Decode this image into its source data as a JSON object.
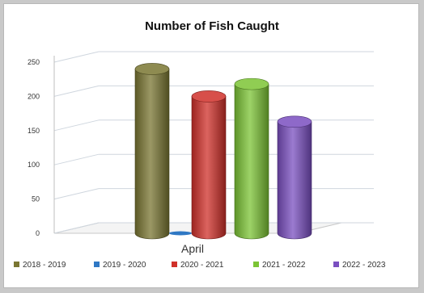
{
  "chart_data": {
    "type": "bar",
    "title": "Number of Fish Caught",
    "xlabel": "",
    "ylabel": "",
    "categories": [
      "April"
    ],
    "ylim": [
      0,
      250
    ],
    "yticks": [
      0,
      50,
      100,
      150,
      200,
      250
    ],
    "grid": true,
    "legend_position": "bottom",
    "series": [
      {
        "name": "2018 - 2019",
        "values": [
          240
        ],
        "color": "#7a7632"
      },
      {
        "name": "2019 - 2020",
        "values": [
          0
        ],
        "color": "#2f78c4"
      },
      {
        "name": "2020 - 2021",
        "values": [
          200
        ],
        "color": "#d0302a"
      },
      {
        "name": "2021 - 2022",
        "values": [
          218
        ],
        "color": "#7cc435"
      },
      {
        "name": "2022 - 2023",
        "values": [
          163
        ],
        "color": "#7a4fc0"
      }
    ]
  }
}
